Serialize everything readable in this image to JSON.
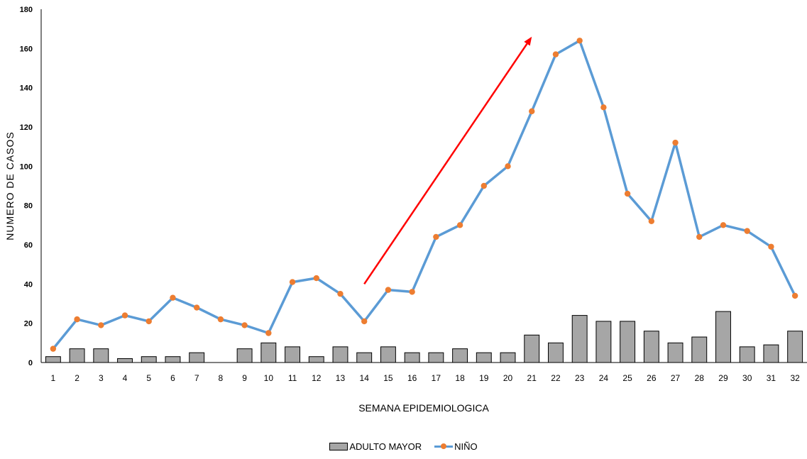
{
  "chart_data": {
    "type": "bar+line",
    "title": "",
    "xlabel": "SEMANA EPIDEMIOLOGICA",
    "ylabel": "NUMERO DE CASOS",
    "ylim": [
      0,
      180
    ],
    "yticks": [
      0,
      20,
      40,
      60,
      80,
      100,
      120,
      140,
      160,
      180
    ],
    "categories": [
      "1",
      "2",
      "3",
      "4",
      "5",
      "6",
      "7",
      "8",
      "9",
      "10",
      "11",
      "12",
      "13",
      "14",
      "15",
      "16",
      "17",
      "18",
      "19",
      "20",
      "21",
      "22",
      "23",
      "24",
      "25",
      "26",
      "27",
      "28",
      "29",
      "30",
      "31",
      "32"
    ],
    "series": [
      {
        "name": "ADULTO MAYOR",
        "type": "bar",
        "color": "#a6a6a6",
        "values": [
          3,
          7,
          7,
          2,
          3,
          3,
          5,
          0,
          7,
          10,
          8,
          3,
          8,
          5,
          8,
          5,
          5,
          7,
          5,
          5,
          14,
          10,
          24,
          21,
          21,
          16,
          10,
          13,
          26,
          8,
          9,
          16
        ]
      },
      {
        "name": "NIÑO",
        "type": "line",
        "color": "#5b9bd5",
        "marker_color": "#ed7d31",
        "values": [
          7,
          22,
          19,
          24,
          21,
          33,
          28,
          22,
          19,
          15,
          41,
          43,
          35,
          21,
          37,
          36,
          64,
          70,
          90,
          100,
          128,
          157,
          164,
          130,
          86,
          72,
          112,
          64,
          70,
          67,
          59,
          34
        ]
      }
    ],
    "annotations": [
      {
        "type": "arrow",
        "color": "#ff0000",
        "from": {
          "x": 14,
          "y": 40
        },
        "to": {
          "x": 21,
          "y": 166
        }
      }
    ],
    "grid": false,
    "legend": "bottom-center"
  }
}
